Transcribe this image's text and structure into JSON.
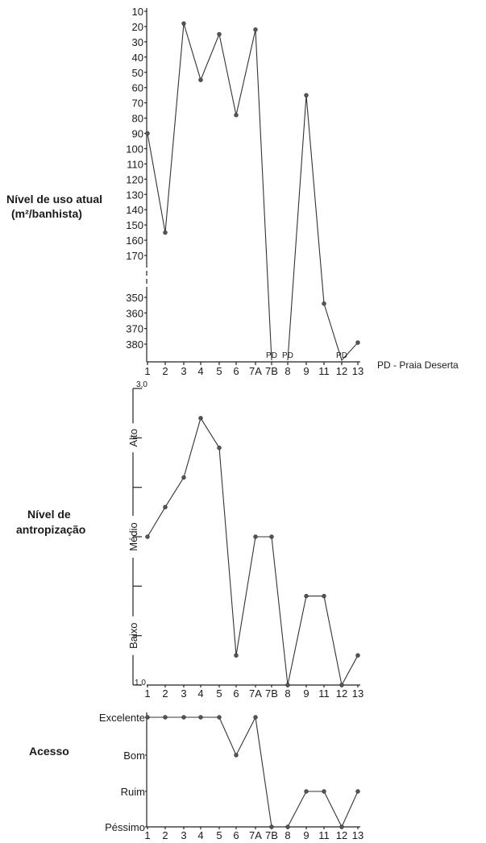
{
  "chart_data": [
    {
      "type": "line",
      "ylabel_line1": "Nível de uso atual",
      "ylabel_line2": "(m²/banhista)",
      "categories": [
        "1",
        "2",
        "3",
        "4",
        "5",
        "6",
        "7A",
        "7B",
        "8",
        "9",
        "11",
        "12",
        "13"
      ],
      "y_ticks": [
        "10",
        "20",
        "30",
        "40",
        "50",
        "60",
        "70",
        "80",
        "90",
        "100",
        "110",
        "120",
        "130",
        "140",
        "150",
        "160",
        "170",
        "350",
        "360",
        "370",
        "380"
      ],
      "y_inverted": true,
      "y_axis_break": [
        170,
        350
      ],
      "values": [
        90,
        155,
        18,
        55,
        25,
        78,
        22,
        null,
        null,
        65,
        354,
        null,
        379
      ],
      "pd_labels": [
        {
          "category": "7B",
          "text": "PD"
        },
        {
          "category": "8",
          "text": "PD"
        },
        {
          "category": "12",
          "text": "PD"
        }
      ],
      "note": "PD - Praia Deserta"
    },
    {
      "type": "line",
      "ylabel_line1": "Nível de",
      "ylabel_line2": "antropização",
      "categories": [
        "1",
        "2",
        "3",
        "4",
        "5",
        "6",
        "7A",
        "7B",
        "8",
        "9",
        "11",
        "12",
        "13"
      ],
      "ylim": [
        1.0,
        3.0
      ],
      "ylim_labels": [
        "1,0",
        "3,0"
      ],
      "band_labels": [
        "Baixo",
        "Médio",
        "Alto"
      ],
      "values": [
        2.0,
        2.2,
        2.4,
        2.8,
        2.6,
        1.2,
        2.0,
        2.0,
        1.0,
        1.6,
        1.6,
        1.0,
        1.2
      ]
    },
    {
      "type": "line",
      "ylabel": "Acesso",
      "categories": [
        "1",
        "2",
        "3",
        "4",
        "5",
        "6",
        "7A",
        "7B",
        "8",
        "9",
        "11",
        "12",
        "13"
      ],
      "levels": [
        "Péssimo",
        "Ruim",
        "Bom",
        "Excelente"
      ],
      "values": [
        4,
        4,
        4,
        4,
        4,
        3,
        4,
        1,
        1,
        2,
        2,
        1,
        2
      ]
    }
  ]
}
